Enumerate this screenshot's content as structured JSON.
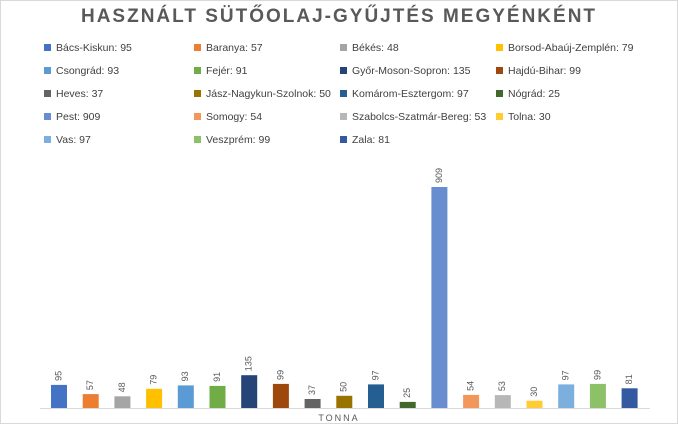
{
  "chart_data": {
    "type": "bar",
    "title": "HASZNÁLT SÜTŐOLAJ-GYŰJTÉS MEGYÉNKÉNT",
    "xlabel": "TONNA",
    "ylabel": "",
    "ylim": [
      0,
      909
    ],
    "grid": false,
    "legend_position": "top",
    "categories": [
      "Bács-Kiskun",
      "Baranya",
      "Békés",
      "Borsod-Abaúj-Zemplén",
      "Csongrád",
      "Fejér",
      "Győr-Moson-Sopron",
      "Hajdú-Bihar",
      "Heves",
      "Jász-Nagykun-Szolnok",
      "Komárom-Esztergom",
      "Nógrád",
      "Pest",
      "Somogy",
      "Szabolcs-Szatmár-Bereg",
      "Tolna",
      "Vas",
      "Veszprém",
      "Zala"
    ],
    "values": [
      95,
      57,
      48,
      79,
      93,
      91,
      135,
      99,
      37,
      50,
      97,
      25,
      909,
      54,
      53,
      30,
      97,
      99,
      81
    ],
    "legend_labels": [
      "Bács-Kiskun: 95",
      "Baranya: 57",
      "Békés: 48",
      "Borsod-Abaúj-Zemplén: 79",
      "Csongrád: 93",
      "Fejér: 91",
      "Győr-Moson-Sopron: 135",
      "Hajdú-Bihar: 99",
      "Heves: 37",
      "Jász-Nagykun-Szolnok: 50",
      "Komárom-Esztergom: 97",
      "Nógrád: 25",
      "Pest: 909",
      "Somogy: 54",
      "Szabolcs-Szatmár-Bereg: 53",
      "Tolna: 30",
      "Vas: 97",
      "Veszprém: 99",
      "Zala: 81"
    ],
    "colors": [
      "#4472c4",
      "#ed7d31",
      "#a5a5a5",
      "#ffc000",
      "#5b9bd5",
      "#70ad47",
      "#264478",
      "#9e480e",
      "#636363",
      "#997300",
      "#255e91",
      "#43682b",
      "#698ed0",
      "#f1975a",
      "#b7b7b7",
      "#ffcd33",
      "#7cafdd",
      "#8cc168",
      "#335aa1"
    ]
  }
}
